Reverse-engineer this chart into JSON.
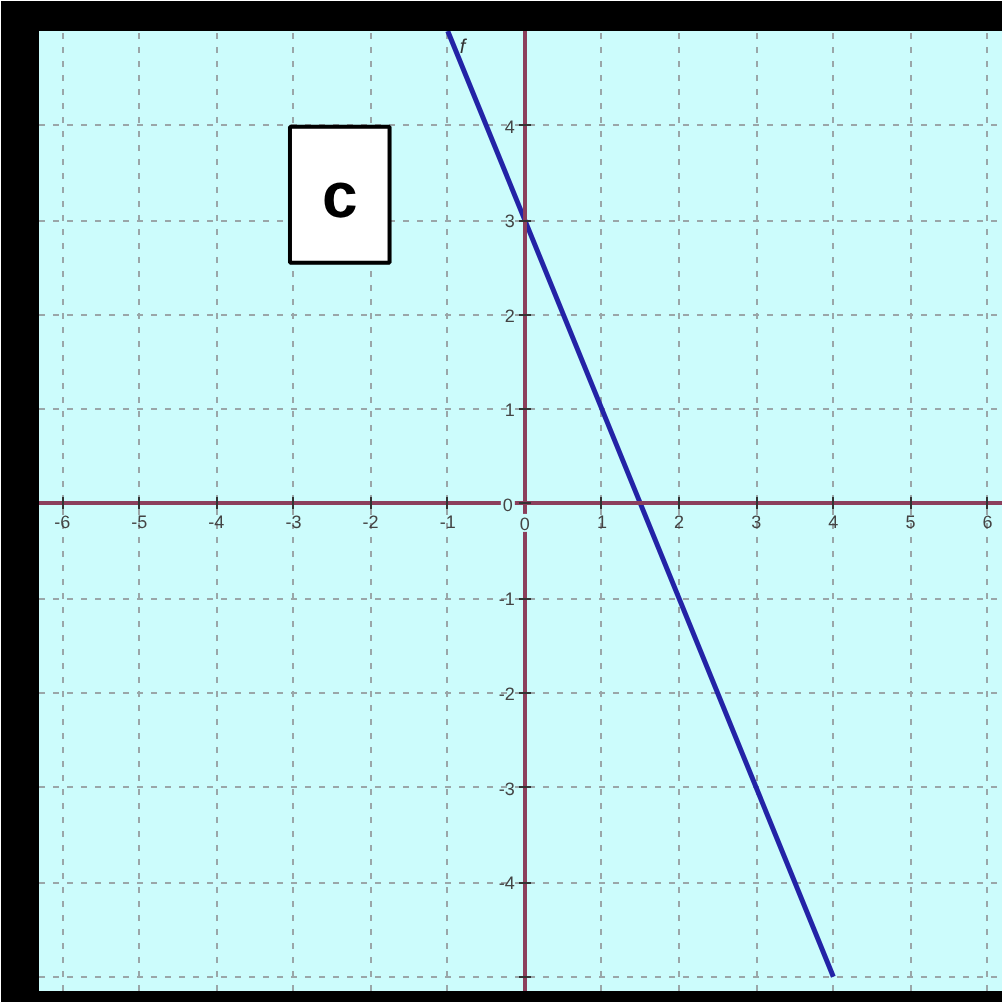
{
  "chart_data": {
    "type": "line",
    "series": [
      {
        "name": "f",
        "color": "#2323a6",
        "x": [
          -1,
          0,
          1.5,
          4
        ],
        "values": [
          5,
          3,
          0,
          -5
        ]
      }
    ],
    "xlim": [
      -6.3,
      6.2
    ],
    "ylim": [
      -5.15,
      5.0
    ],
    "xticks": [
      -6,
      -5,
      -4,
      -3,
      -2,
      -1,
      0,
      1,
      2,
      3,
      4,
      5,
      6
    ],
    "yticks": [
      {
        "value": -5,
        "label": null
      },
      -4,
      -3,
      -2,
      -1,
      0,
      1,
      2,
      3,
      4
    ],
    "grid": true,
    "line_style": "solid",
    "annotations": [
      "c"
    ]
  }
}
